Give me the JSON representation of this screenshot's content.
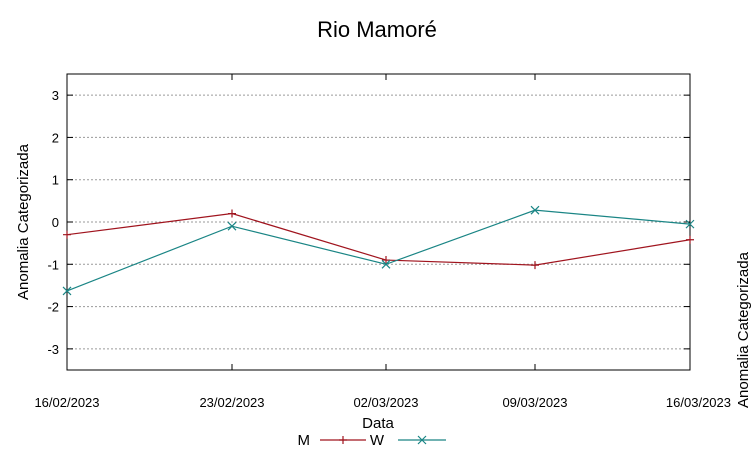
{
  "chart_data": {
    "type": "line",
    "title": "Rio Mamoré",
    "xlabel": "Data",
    "ylabel": "Anomalia Categorizada",
    "right_axis_label_fragment": "Anomalia Categorizada",
    "categories": [
      "16/02/2023",
      "23/02/2023",
      "02/03/2023",
      "09/03/2023",
      "16/03/2023"
    ],
    "x_tick_labels": [
      "16/02/2023",
      "23/02/2023",
      "02/03/2023",
      "09/03/2023",
      "16/03/2023"
    ],
    "y_ticks": [
      -3,
      -2,
      -1,
      0,
      1,
      2,
      3
    ],
    "ylim": [
      -3.5,
      3.5
    ],
    "grid": true,
    "legend_position": "bottom-center",
    "series": [
      {
        "name": "M",
        "color": "#a0141e",
        "marker": "plus",
        "x": [
          0,
          1,
          2,
          3,
          4
        ],
        "values": [
          -0.3,
          0.2,
          -0.9,
          -1.02,
          -0.42
        ]
      },
      {
        "name": "W",
        "color": "#1a8585",
        "marker": "cross",
        "x": [
          0,
          1,
          2,
          3,
          4
        ],
        "values": [
          -1.63,
          -0.1,
          -1.0,
          0.28,
          -0.05
        ]
      }
    ]
  }
}
